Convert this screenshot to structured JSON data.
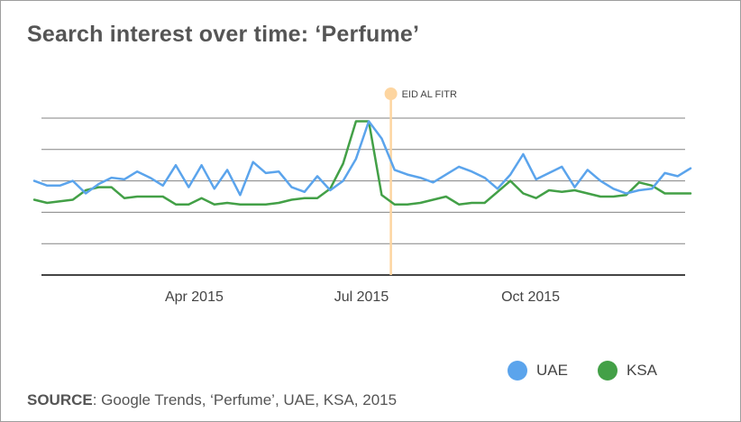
{
  "title": "Search interest over time: ‘Perfume’",
  "source": {
    "label": "SOURCE",
    "text": ": Google Trends, ‘Perfume’, UAE, KSA, 2015"
  },
  "colors": {
    "UAE": "#5ba4ec",
    "KSA": "#43a047",
    "event": "#fdd5a0",
    "grid": "#5a5a5a",
    "axis": "#444444",
    "title": "#555555"
  },
  "chart_data": {
    "type": "line",
    "title": "Search interest over time: ‘Perfume’",
    "xlabel": "",
    "ylabel": "",
    "grid": true,
    "legend_position": "bottom-right",
    "x": [
      "2015-01-04",
      "2015-01-11",
      "2015-01-18",
      "2015-01-25",
      "2015-02-01",
      "2015-02-08",
      "2015-02-15",
      "2015-02-22",
      "2015-03-01",
      "2015-03-08",
      "2015-03-15",
      "2015-03-22",
      "2015-03-29",
      "2015-04-05",
      "2015-04-12",
      "2015-04-19",
      "2015-04-26",
      "2015-05-03",
      "2015-05-10",
      "2015-05-17",
      "2015-05-24",
      "2015-05-31",
      "2015-06-07",
      "2015-06-14",
      "2015-06-21",
      "2015-06-28",
      "2015-07-05",
      "2015-07-12",
      "2015-07-19",
      "2015-07-26",
      "2015-08-02",
      "2015-08-09",
      "2015-08-16",
      "2015-08-23",
      "2015-08-30",
      "2015-09-06",
      "2015-09-13",
      "2015-09-20",
      "2015-09-27",
      "2015-10-04",
      "2015-10-11",
      "2015-10-18",
      "2015-10-25",
      "2015-11-01",
      "2015-11-08",
      "2015-11-15",
      "2015-11-22",
      "2015-11-29",
      "2015-12-06",
      "2015-12-13",
      "2015-12-20",
      "2015-12-27"
    ],
    "xticks": [
      {
        "label": "Apr 2015",
        "date": "2015-04-01"
      },
      {
        "label": "Jul 2015",
        "date": "2015-07-01"
      },
      {
        "label": "Oct 2015",
        "date": "2015-10-01"
      }
    ],
    "ylim": [
      0,
      100
    ],
    "yticks": [
      0,
      20,
      40,
      60,
      80,
      100
    ],
    "series": [
      {
        "name": "UAE",
        "values": [
          60,
          57,
          57,
          60,
          52,
          58,
          62,
          61,
          66,
          62,
          57,
          70,
          56,
          70,
          55,
          67,
          51,
          72,
          65,
          66,
          56,
          53,
          63,
          54,
          60,
          74,
          98,
          87,
          67,
          64,
          62,
          59,
          64,
          69,
          66,
          62,
          55,
          64,
          77,
          61,
          65,
          69,
          56,
          67,
          60,
          55,
          52,
          54,
          55,
          65,
          63,
          68
        ]
      },
      {
        "name": "KSA",
        "values": [
          48,
          46,
          47,
          48,
          54,
          56,
          56,
          49,
          50,
          50,
          50,
          45,
          45,
          49,
          45,
          46,
          45,
          45,
          45,
          46,
          48,
          49,
          49,
          55,
          71,
          98,
          98,
          51,
          45,
          45,
          46,
          48,
          50,
          45,
          46,
          46,
          53,
          60,
          52,
          49,
          54,
          53,
          54,
          52,
          50,
          50,
          51,
          59,
          57,
          52,
          52,
          52
        ]
      }
    ],
    "annotations": [
      {
        "label": "EID AL FITR",
        "x": "2015-07-17"
      }
    ]
  }
}
